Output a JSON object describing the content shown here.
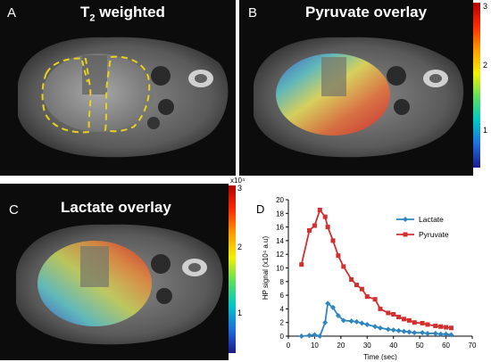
{
  "panels": {
    "a": {
      "letter": "A",
      "title": "T",
      "title_sub": "2",
      "title_rest": " weighted"
    },
    "b": {
      "letter": "B",
      "title": "Pyruvate overlay"
    },
    "c": {
      "letter": "C",
      "title": "Lactate overlay"
    },
    "d": {
      "letter": "D"
    }
  },
  "colorbar_b": {
    "ticks": [
      "3",
      "2",
      "1"
    ]
  },
  "colorbar_c": {
    "exponent": "x10⁴",
    "ticks": [
      "3",
      "2",
      "1"
    ]
  },
  "chart_data": {
    "type": "line",
    "ylabel": "HP signal (x10⁴ a.u)",
    "xlabel": "Time (sec)",
    "xlim": [
      0,
      70
    ],
    "ylim": [
      0,
      20
    ],
    "xticks": [
      "0",
      "10",
      "20",
      "30",
      "40",
      "50",
      "60",
      "70"
    ],
    "yticks": [
      "0",
      "2",
      "4",
      "6",
      "8",
      "10",
      "12",
      "14",
      "16",
      "18",
      "20"
    ],
    "legend_position": "top-right",
    "series": [
      {
        "name": "Lactate",
        "color": "#2e86c1",
        "marker": "diamond",
        "x": [
          5,
          8,
          10,
          12,
          14,
          15,
          17,
          19,
          21,
          24,
          26,
          28,
          30,
          33,
          35,
          38,
          40,
          42,
          44,
          46,
          48,
          51,
          53,
          56,
          58,
          60,
          62
        ],
        "y": [
          0,
          0.1,
          0.2,
          0,
          2.0,
          4.8,
          4.2,
          3.0,
          2.3,
          2.2,
          2.1,
          1.9,
          1.7,
          1.4,
          1.2,
          1.0,
          0.9,
          0.8,
          0.7,
          0.6,
          0.5,
          0.5,
          0.4,
          0.4,
          0.3,
          0.3,
          0.2
        ]
      },
      {
        "name": "Pyruvate",
        "color": "#d32f2f",
        "marker": "square",
        "x": [
          5,
          8,
          10,
          12,
          14,
          15,
          17,
          19,
          21,
          24,
          26,
          28,
          30,
          33,
          35,
          38,
          40,
          42,
          44,
          46,
          48,
          51,
          53,
          56,
          58,
          60,
          62
        ],
        "y": [
          10.5,
          15.5,
          16.2,
          18.5,
          17.5,
          16.0,
          14.0,
          11.8,
          10.2,
          8.3,
          7.5,
          6.9,
          5.8,
          5.4,
          4.0,
          3.4,
          3.2,
          2.8,
          2.5,
          2.3,
          2.0,
          1.9,
          1.7,
          1.5,
          1.4,
          1.3,
          1.2
        ]
      }
    ]
  }
}
